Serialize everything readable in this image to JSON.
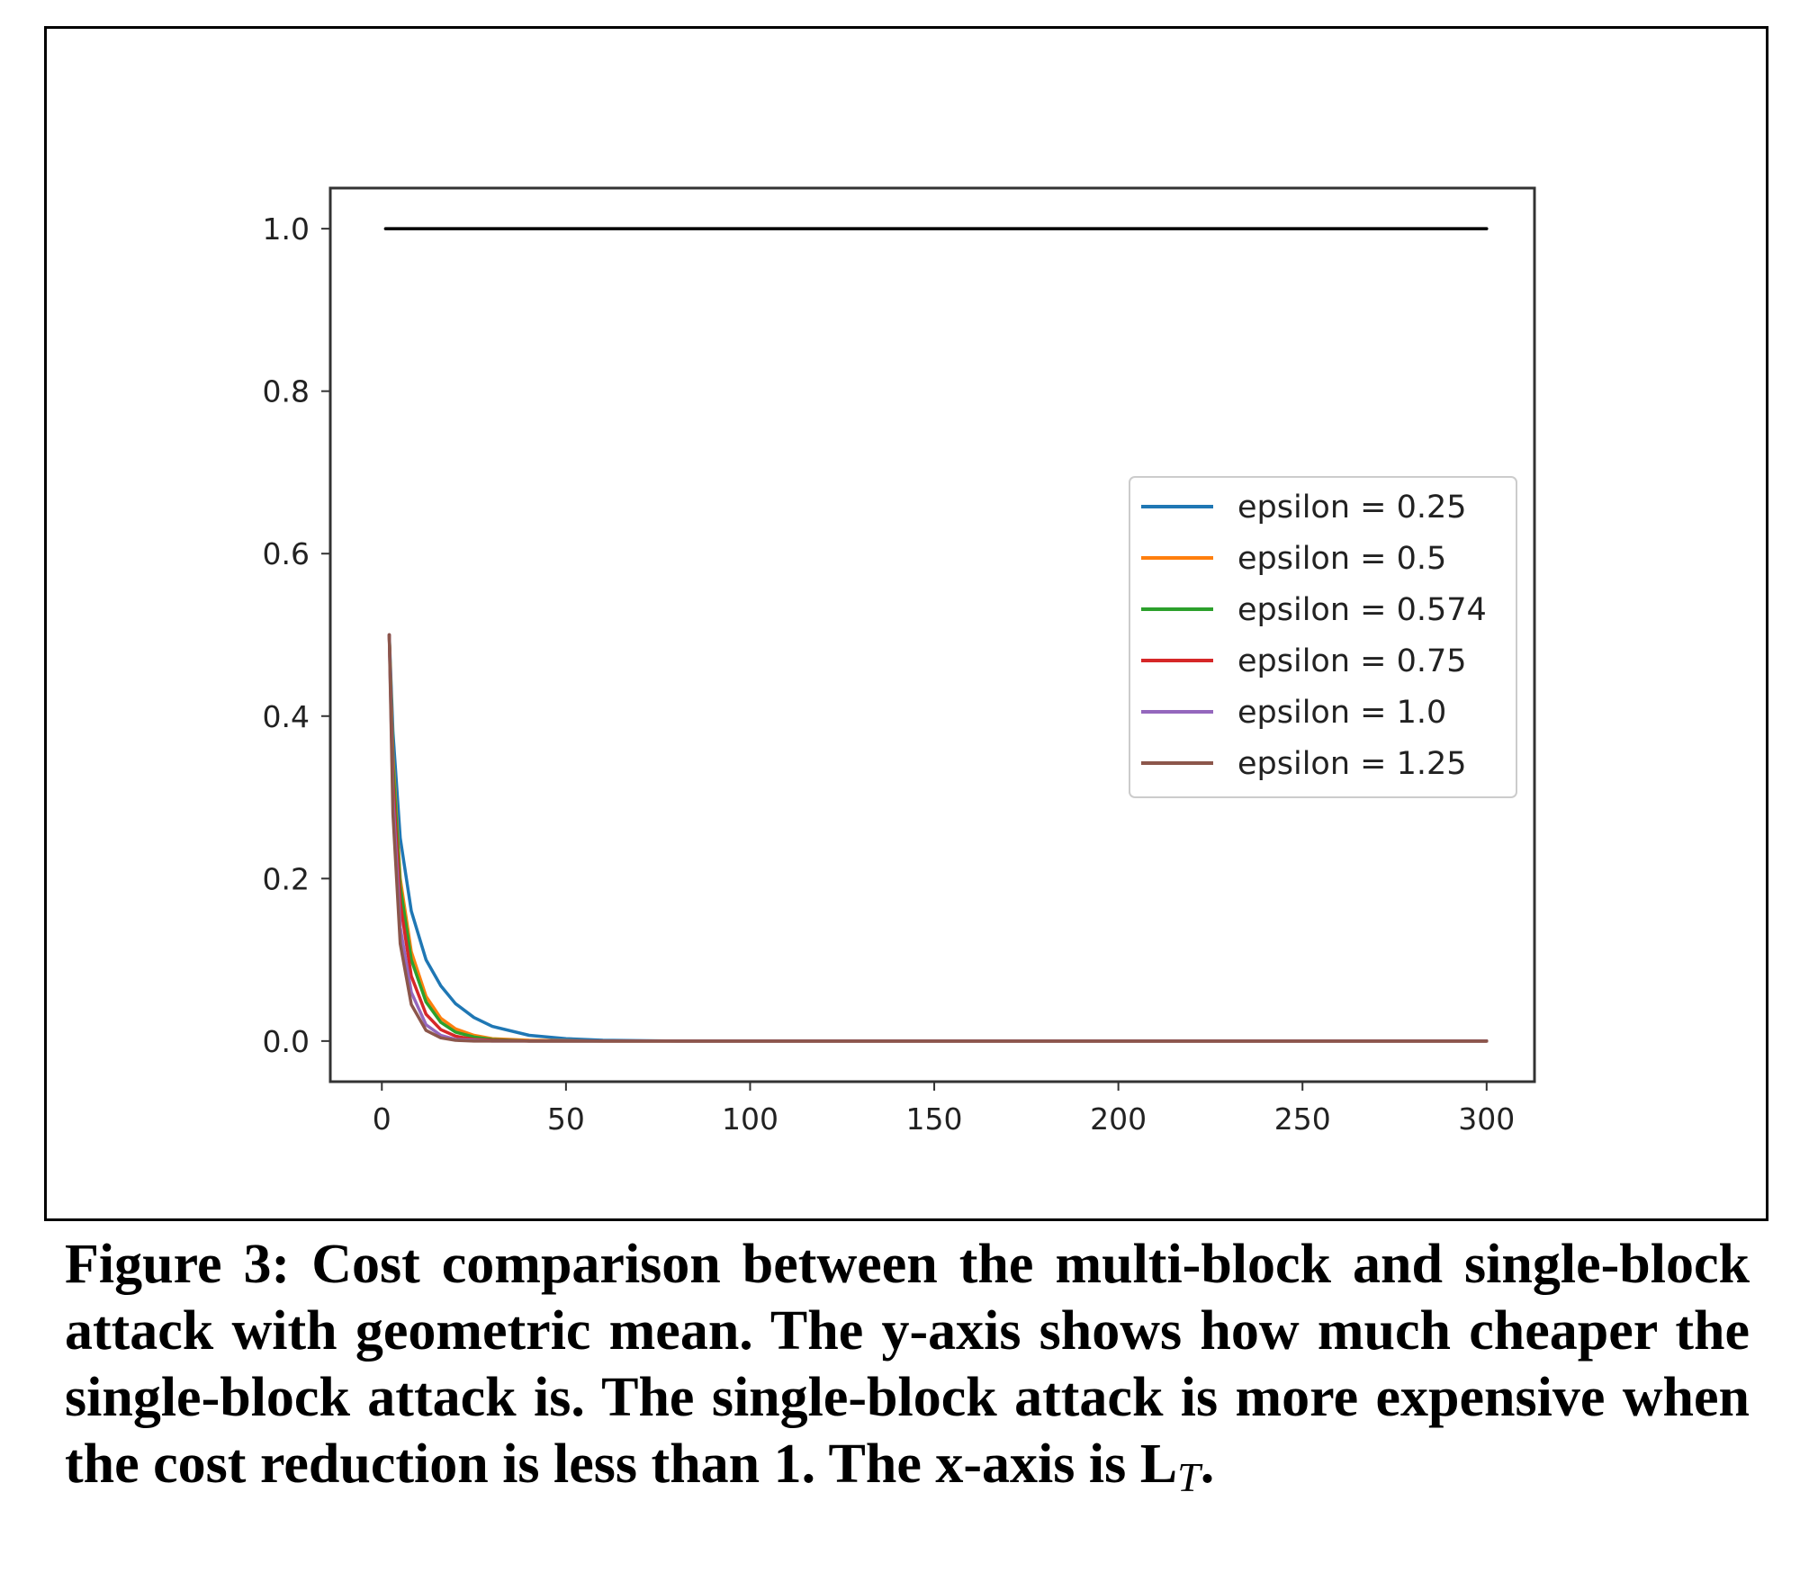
{
  "chart_data": {
    "type": "line",
    "title": "",
    "xlabel": "",
    "ylabel": "",
    "xlim": [
      -14,
      313
    ],
    "ylim": [
      -0.05,
      1.05
    ],
    "xticks": [
      0,
      50,
      100,
      150,
      200,
      250,
      300
    ],
    "xtick_labels": [
      "0",
      "50",
      "100",
      "150",
      "200",
      "250",
      "300"
    ],
    "yticks": [
      0.0,
      0.2,
      0.4,
      0.6,
      0.8,
      1.0
    ],
    "ytick_labels": [
      "0.0",
      "0.2",
      "0.4",
      "0.6",
      "0.8",
      "1.0"
    ],
    "grid": false,
    "legend_position": "center-right",
    "series": [
      {
        "name": "epsilon = 0.25",
        "color": "#1f77b4",
        "in_legend": true,
        "x": [
          2,
          3,
          5,
          8,
          12,
          16,
          20,
          25,
          30,
          40,
          50,
          60,
          80,
          300
        ],
        "y": [
          0.5,
          0.38,
          0.25,
          0.16,
          0.1,
          0.068,
          0.046,
          0.029,
          0.018,
          0.007,
          0.003,
          0.001,
          0.0,
          0.0
        ]
      },
      {
        "name": "epsilon = 0.5",
        "color": "#ff7f0e",
        "in_legend": true,
        "x": [
          2,
          3,
          5,
          8,
          12,
          16,
          20,
          25,
          30,
          40,
          60,
          300
        ],
        "y": [
          0.5,
          0.35,
          0.2,
          0.11,
          0.055,
          0.028,
          0.015,
          0.007,
          0.003,
          0.001,
          0.0,
          0.0
        ]
      },
      {
        "name": "epsilon = 0.574",
        "color": "#2ca02c",
        "in_legend": true,
        "x": [
          2,
          3,
          5,
          8,
          12,
          16,
          20,
          25,
          30,
          40,
          60,
          300
        ],
        "y": [
          0.5,
          0.34,
          0.19,
          0.1,
          0.048,
          0.023,
          0.011,
          0.005,
          0.002,
          0.0,
          0.0,
          0.0
        ]
      },
      {
        "name": "epsilon = 0.75",
        "color": "#d62728",
        "in_legend": true,
        "x": [
          2,
          3,
          5,
          8,
          12,
          16,
          20,
          25,
          30,
          40,
          300
        ],
        "y": [
          0.5,
          0.32,
          0.17,
          0.08,
          0.033,
          0.014,
          0.006,
          0.002,
          0.001,
          0.0,
          0.0
        ]
      },
      {
        "name": "epsilon = 1.0",
        "color": "#9467bd",
        "in_legend": true,
        "x": [
          2,
          3,
          5,
          8,
          12,
          16,
          20,
          25,
          30,
          300
        ],
        "y": [
          0.5,
          0.3,
          0.14,
          0.06,
          0.02,
          0.007,
          0.002,
          0.001,
          0.0,
          0.0
        ]
      },
      {
        "name": "epsilon = 1.25",
        "color": "#8c564b",
        "in_legend": true,
        "x": [
          2,
          3,
          5,
          8,
          12,
          16,
          20,
          25,
          300
        ],
        "y": [
          0.5,
          0.28,
          0.12,
          0.045,
          0.013,
          0.004,
          0.001,
          0.0,
          0.0
        ]
      },
      {
        "name": "",
        "color": "#000000",
        "in_legend": false,
        "x": [
          1,
          300
        ],
        "y": [
          1.0,
          1.0
        ]
      }
    ]
  },
  "caption": {
    "text": "Figure 3: Cost comparison between the multi-block and single-block attack with geometric mean. The y-axis shows how much cheaper the single-block attack is. The single-block attack is more expensive when the cost reduction is less than 1. The x-axis is ",
    "symbol_main": "L",
    "symbol_sub": "T",
    "end": "."
  }
}
